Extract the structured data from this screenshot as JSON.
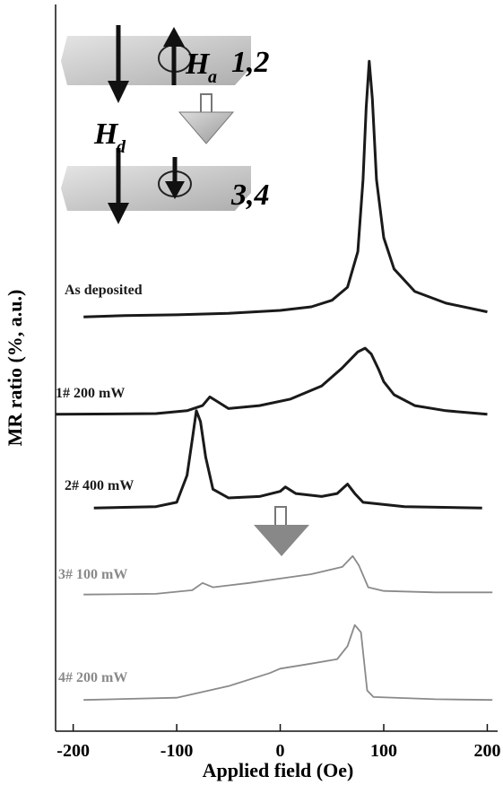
{
  "chart_data": {
    "type": "line",
    "xlabel": "Applied field (Oe)",
    "ylabel": "MR ratio (%, a.u.)",
    "xlim": [
      -217,
      210
    ],
    "xticks": [
      -200,
      -100,
      0,
      100,
      200
    ],
    "ylim": [
      0,
      100
    ],
    "annotations": [
      "H",
      "a",
      "1,2",
      "H",
      "d",
      "3,4"
    ],
    "series": [
      {
        "name": "As deposited",
        "color": "#1a1a1a",
        "x": [
          -190,
          -150,
          -100,
          -50,
          0,
          30,
          50,
          65,
          75,
          80,
          83,
          86,
          89,
          93,
          100,
          110,
          130,
          160,
          200
        ],
        "values": [
          57.0,
          57.2,
          57.3,
          57.5,
          57.9,
          58.4,
          59.3,
          61.1,
          66.0,
          75.9,
          85.8,
          92.2,
          87.0,
          75.9,
          67.9,
          63.6,
          60.5,
          58.9,
          57.7
        ]
      },
      {
        "name": "1# 200 mW",
        "color": "#1a1a1a",
        "x": [
          -217,
          -120,
          -90,
          -75,
          -68,
          -60,
          -50,
          -20,
          10,
          40,
          60,
          75,
          82,
          88,
          95,
          100,
          110,
          130,
          160,
          200
        ],
        "values": [
          43.6,
          43.7,
          44.1,
          44.8,
          46.0,
          45.3,
          44.4,
          44.8,
          45.7,
          47.5,
          50.0,
          52.2,
          52.7,
          51.9,
          49.8,
          48.1,
          46.3,
          44.8,
          44.1,
          43.6
        ]
      },
      {
        "name": "2# 400 mW",
        "color": "#1a1a1a",
        "x": [
          -180,
          -120,
          -100,
          -90,
          -85,
          -81,
          -77,
          -72,
          -65,
          -50,
          -20,
          0,
          5,
          15,
          40,
          55,
          65,
          72,
          80,
          120,
          195
        ],
        "values": [
          30.7,
          30.9,
          31.5,
          35.2,
          40.1,
          44.1,
          42.6,
          37.7,
          33.3,
          32.1,
          32.3,
          33.0,
          33.6,
          32.7,
          32.3,
          32.7,
          34.0,
          32.7,
          31.5,
          30.9,
          30.7
        ]
      },
      {
        "name": "3# 100 mW",
        "color": "#8a8a8a",
        "x": [
          -190,
          -120,
          -85,
          -75,
          -65,
          -30,
          0,
          30,
          60,
          66,
          70,
          76,
          85,
          100,
          150,
          205
        ],
        "values": [
          18.8,
          18.9,
          19.4,
          20.4,
          19.8,
          20.4,
          21.0,
          21.6,
          22.6,
          23.5,
          24.1,
          22.8,
          19.8,
          19.3,
          19.1,
          19.1
        ]
      },
      {
        "name": "4# 200 mW",
        "color": "#8a8a8a",
        "x": [
          -190,
          -100,
          -50,
          -10,
          0,
          30,
          55,
          65,
          72,
          78,
          84,
          90,
          150,
          205
        ],
        "values": [
          4.3,
          4.6,
          6.2,
          8.0,
          8.6,
          9.3,
          9.9,
          11.7,
          14.6,
          13.6,
          5.6,
          4.7,
          4.4,
          4.3
        ]
      }
    ]
  }
}
